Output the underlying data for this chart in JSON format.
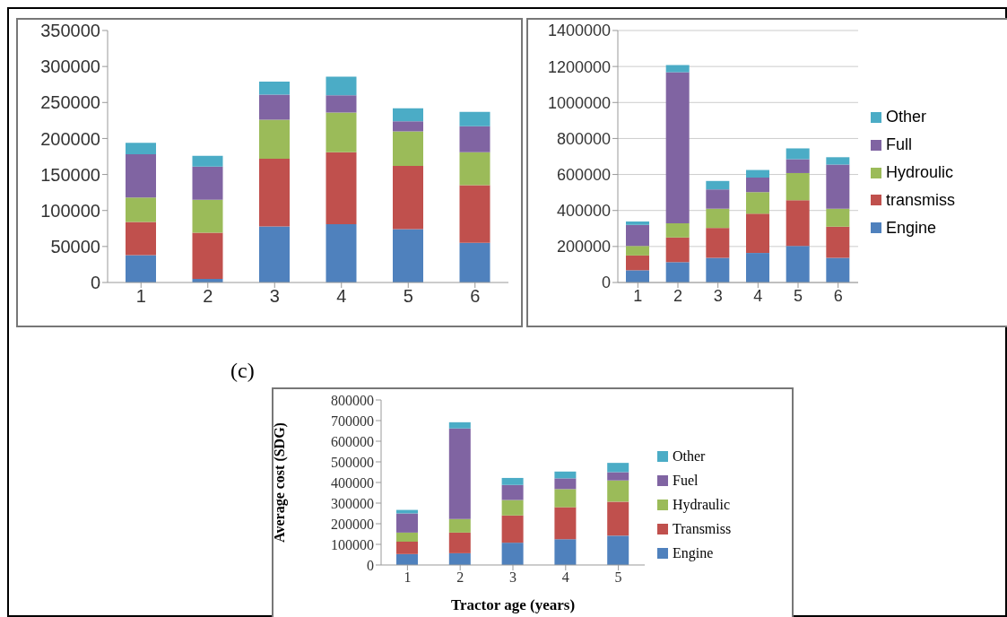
{
  "chart_data": [
    {
      "type": "bar",
      "stacked": true,
      "categories": [
        "1",
        "2",
        "3",
        "4",
        "5",
        "6"
      ],
      "ylim": [
        0,
        350000
      ],
      "yticks": [
        0,
        50000,
        100000,
        150000,
        200000,
        250000,
        300000,
        350000
      ],
      "grid": false,
      "legend": false,
      "series": [
        {
          "color": "#4f81bd",
          "values": [
            38000,
            5000,
            78000,
            81000,
            74000,
            55000
          ]
        },
        {
          "color": "#c0504d",
          "values": [
            46000,
            64000,
            94000,
            100000,
            88000,
            80000
          ]
        },
        {
          "color": "#9bbb59",
          "values": [
            34000,
            46000,
            54000,
            55000,
            48000,
            46000
          ]
        },
        {
          "color": "#8064a2",
          "values": [
            60000,
            46000,
            35000,
            24000,
            14000,
            36000
          ]
        },
        {
          "color": "#4bacc6",
          "values": [
            16000,
            15000,
            18000,
            26000,
            18000,
            20000
          ]
        }
      ]
    },
    {
      "type": "bar",
      "stacked": true,
      "categories": [
        "1",
        "2",
        "3",
        "4",
        "5",
        "6"
      ],
      "ylim": [
        0,
        1400000
      ],
      "yticks": [
        0,
        200000,
        400000,
        600000,
        800000,
        1000000,
        1200000,
        1400000
      ],
      "grid": "y",
      "legend": "right",
      "series": [
        {
          "name": "Engine",
          "color": "#4f81bd",
          "values": [
            68000,
            113000,
            137000,
            164000,
            203000,
            137000
          ]
        },
        {
          "name": "transmiss",
          "color": "#c0504d",
          "values": [
            82000,
            137000,
            166000,
            218000,
            254000,
            173000
          ]
        },
        {
          "name": "Hydroulic",
          "color": "#9bbb59",
          "values": [
            53000,
            79000,
            107000,
            120000,
            151000,
            100000
          ]
        },
        {
          "name": "Full",
          "color": "#8064a2",
          "values": [
            117000,
            839000,
            107000,
            81000,
            77000,
            245000
          ]
        },
        {
          "name": "Other",
          "color": "#4bacc6",
          "values": [
            19000,
            40000,
            47000,
            42000,
            60000,
            41000
          ]
        }
      ]
    },
    {
      "type": "bar",
      "stacked": true,
      "title": "(c)",
      "ylabel": "Average cost (SDG)",
      "xlabel": "Tractor age (years)",
      "categories": [
        "1",
        "2",
        "3",
        "4",
        "5"
      ],
      "ylim": [
        0,
        800000
      ],
      "yticks": [
        0,
        100000,
        200000,
        300000,
        400000,
        500000,
        600000,
        700000,
        800000
      ],
      "grid": false,
      "legend": "right",
      "series": [
        {
          "name": "Engine",
          "color": "#4f81bd",
          "values": [
            53000,
            57000,
            108000,
            125000,
            142000
          ]
        },
        {
          "name": "Transmiss",
          "color": "#c0504d",
          "values": [
            60000,
            100000,
            132000,
            155000,
            165000
          ]
        },
        {
          "name": "Hydraulic",
          "color": "#9bbb59",
          "values": [
            44000,
            66000,
            75000,
            88000,
            103000
          ]
        },
        {
          "name": "Fuel",
          "color": "#8064a2",
          "values": [
            93000,
            439000,
            73000,
            52000,
            40000
          ]
        },
        {
          "name": "Other",
          "color": "#4bacc6",
          "values": [
            17000,
            30000,
            34000,
            33000,
            45000
          ]
        }
      ]
    }
  ]
}
